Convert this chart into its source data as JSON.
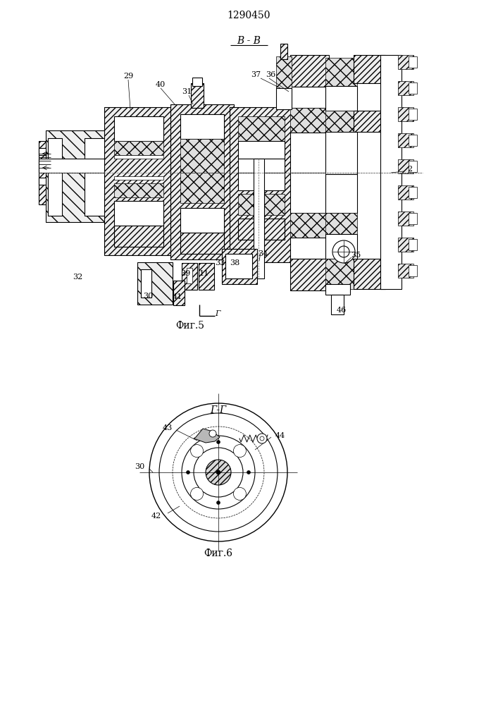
{
  "patent_number": "1290450",
  "fig5_label": "В - В",
  "fig5_caption": "Фиг.5",
  "fig6_label": "Г-Г",
  "fig6_caption": "Фиг.6",
  "bg_color": "#ffffff",
  "line_color": "#000000"
}
